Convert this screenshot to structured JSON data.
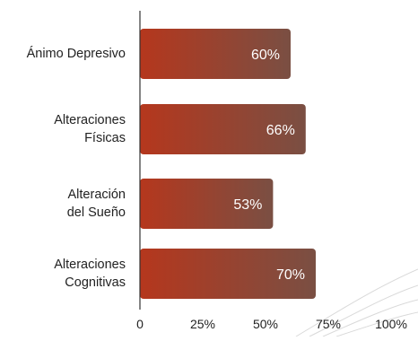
{
  "chart_data": {
    "type": "bar",
    "orientation": "horizontal",
    "categories": [
      [
        "Ánimo Depresivo"
      ],
      [
        "Alteraciones",
        "Físicas"
      ],
      [
        "Alteración",
        "del Sueño"
      ],
      [
        "Alteraciones",
        "Cognitivas"
      ]
    ],
    "values": [
      60,
      66,
      53,
      70
    ],
    "value_labels": [
      "60%",
      "66%",
      "53%",
      "70%"
    ],
    "xlim": [
      0,
      100
    ],
    "x_ticks": [
      0,
      25,
      50,
      75,
      100
    ],
    "x_tick_labels": [
      "0",
      "25%",
      "50%",
      "75%",
      "100%"
    ],
    "grid": false,
    "colors": {
      "bar_start": "#B5371D",
      "bar_end": "#7A4F43",
      "axis": "#333333",
      "text": "#222222",
      "value_text": "#ffffff"
    }
  }
}
